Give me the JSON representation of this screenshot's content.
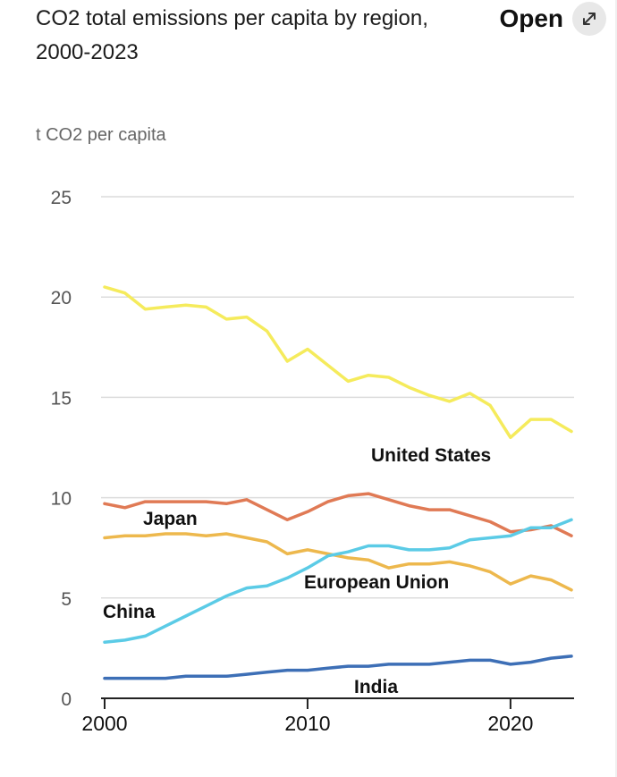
{
  "header": {
    "title": "CO2 total emissions per capita by region, 2000-2023",
    "open_label": "Open",
    "open_icon": "expand-icon"
  },
  "chart_data": {
    "type": "line",
    "title": "CO2 total emissions per capita by region, 2000-2023",
    "ylabel": "t CO2 per capita",
    "xlabel": "",
    "ylim": [
      0,
      25
    ],
    "y_ticks": [
      0,
      5,
      10,
      15,
      20,
      25
    ],
    "x_ticks": [
      2000,
      2010,
      2020
    ],
    "x": [
      2000,
      2001,
      2002,
      2003,
      2004,
      2005,
      2006,
      2007,
      2008,
      2009,
      2010,
      2011,
      2012,
      2013,
      2014,
      2015,
      2016,
      2017,
      2018,
      2019,
      2020,
      2021,
      2022,
      2023
    ],
    "grid": true,
    "series": [
      {
        "name": "United States",
        "color": "#f5eb5c",
        "values": [
          20.5,
          20.2,
          19.4,
          19.5,
          19.6,
          19.5,
          18.9,
          19.0,
          18.3,
          16.8,
          17.4,
          16.6,
          15.8,
          16.1,
          16.0,
          15.5,
          15.1,
          14.8,
          15.2,
          14.6,
          13.0,
          13.9,
          13.9,
          13.3
        ]
      },
      {
        "name": "Japan",
        "color": "#e07a55",
        "values": [
          9.7,
          9.5,
          9.8,
          9.8,
          9.8,
          9.8,
          9.7,
          9.9,
          9.4,
          8.9,
          9.3,
          9.8,
          10.1,
          10.2,
          9.9,
          9.6,
          9.4,
          9.4,
          9.1,
          8.8,
          8.3,
          8.4,
          8.6,
          8.1
        ]
      },
      {
        "name": "European Union",
        "color": "#edb84d",
        "values": [
          8.0,
          8.1,
          8.1,
          8.2,
          8.2,
          8.1,
          8.2,
          8.0,
          7.8,
          7.2,
          7.4,
          7.2,
          7.0,
          6.9,
          6.5,
          6.7,
          6.7,
          6.8,
          6.6,
          6.3,
          5.7,
          6.1,
          5.9,
          5.4
        ]
      },
      {
        "name": "China",
        "color": "#5bcbe6",
        "values": [
          2.8,
          2.9,
          3.1,
          3.6,
          4.1,
          4.6,
          5.1,
          5.5,
          5.6,
          6.0,
          6.5,
          7.1,
          7.3,
          7.6,
          7.6,
          7.4,
          7.4,
          7.5,
          7.9,
          8.0,
          8.1,
          8.5,
          8.5,
          8.9
        ]
      },
      {
        "name": "India",
        "color": "#3d6fb6",
        "values": [
          1.0,
          1.0,
          1.0,
          1.0,
          1.1,
          1.1,
          1.1,
          1.2,
          1.3,
          1.4,
          1.4,
          1.5,
          1.6,
          1.6,
          1.7,
          1.7,
          1.7,
          1.8,
          1.9,
          1.9,
          1.7,
          1.8,
          2.0,
          2.1
        ]
      }
    ],
    "annotations": [
      {
        "text": "United States",
        "series": "United States"
      },
      {
        "text": "Japan",
        "series": "Japan"
      },
      {
        "text": "European Union",
        "series": "European Union"
      },
      {
        "text": "China",
        "series": "China"
      },
      {
        "text": "India",
        "series": "India"
      }
    ]
  }
}
